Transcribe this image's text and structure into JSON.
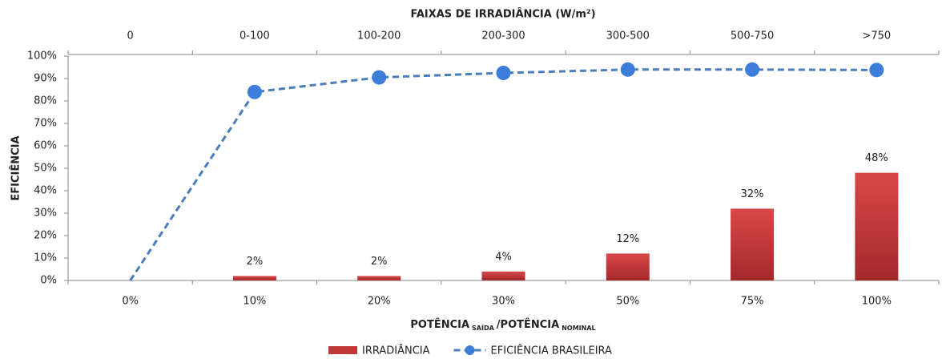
{
  "chart_data": {
    "type": "bar",
    "top_axis_title": "FAIXAS DE IRRADIÂNCIA (W/m²)",
    "top_categories": [
      "0",
      "0-100",
      "100-200",
      "200-300",
      "300-500",
      "500-750",
      ">750"
    ],
    "ylabel": "EFICIÊNCIA",
    "xlabel_parts": [
      "POTÊNCIA",
      "SAÍDA",
      "/POTÊNCIA",
      "NOMINAL"
    ],
    "categories": [
      "0%",
      "10%",
      "20%",
      "30%",
      "50%",
      "75%",
      "100%"
    ],
    "series": [
      {
        "name": "IRRADIÂNCIA",
        "type": "bar",
        "color": "#c0383a",
        "values": [
          0,
          2,
          2,
          4,
          12,
          32,
          48
        ],
        "value_labels": [
          null,
          "2%",
          "2%",
          "4%",
          "12%",
          "32%",
          "48%"
        ]
      },
      {
        "name": "EFICIÊNCIA BRASILEIRA",
        "type": "line",
        "color": "#4a7ebb",
        "marker_color": "#3b7dd8",
        "dashed": true,
        "values": [
          0,
          84,
          90.5,
          92.5,
          94,
          94,
          93.8
        ]
      }
    ],
    "ylim": [
      0,
      100
    ],
    "yticks": [
      {
        "value": 0,
        "label": "0%"
      },
      {
        "value": 10,
        "label": "10%"
      },
      {
        "value": 20,
        "label": "20%"
      },
      {
        "value": 30,
        "label": "30%"
      },
      {
        "value": 40,
        "label": "40%"
      },
      {
        "value": 50,
        "label": "50%"
      },
      {
        "value": 60,
        "label": "60%"
      },
      {
        "value": 70,
        "label": "70%"
      },
      {
        "value": 80,
        "label": "80%"
      },
      {
        "value": 90,
        "label": "90%"
      },
      {
        "value": 100,
        "label": "100%"
      }
    ],
    "grid": false,
    "legend": "bottom"
  }
}
